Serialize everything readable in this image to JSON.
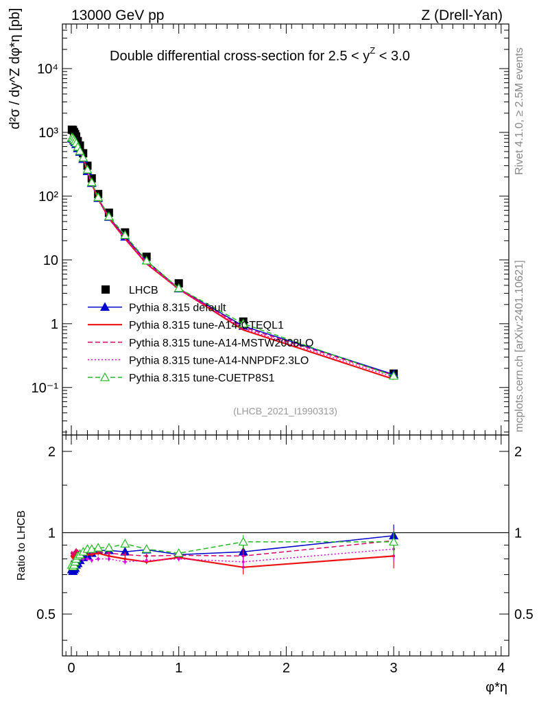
{
  "header": {
    "energy_label": "13000 GeV pp",
    "process_label": "Z (Drell-Yan)",
    "side_rivet": "Rivet 4.1.0, ≥ 2.5M events",
    "side_mcplots": "mcplots.cern.ch [arXiv:2401.10621]",
    "analysis_id": "(LHCB_2021_I1990313)"
  },
  "chart_data": {
    "type": "line",
    "title": "Double differential cross-section for 2.5 < y^Z < 3.0",
    "title_text": "Double differential cross-section for 2.5 < y",
    "title_sup": "Z",
    "title_tail": " < 3.0",
    "xlabel": "φ*η",
    "ylabel": "d²σ / dy^Z dφ*η [pb]",
    "ylabel_ratio": "Ratio to LHCB",
    "xlim": [
      -0.08,
      4.05
    ],
    "ylim": [
      0.018,
      50000
    ],
    "ylim_ratio": [
      0.35,
      2.3
    ],
    "x_ticks": [
      "0",
      "1",
      "2",
      "3",
      "4"
    ],
    "y_ticks": [
      "10⁻¹",
      "1",
      "10",
      "10²",
      "10³",
      "10⁴"
    ],
    "ratio_ticks": [
      "0.5",
      "1",
      "2"
    ],
    "x": [
      0.005,
      0.015,
      0.025,
      0.035,
      0.045,
      0.06,
      0.08,
      0.11,
      0.15,
      0.19,
      0.25,
      0.35,
      0.5,
      0.7,
      1.0,
      1.6,
      3.0
    ],
    "series": [
      {
        "name": "LHCB",
        "key": "lhcb",
        "color": "#000000",
        "style": "data",
        "values": [
          1100,
          1090,
          1010,
          940,
          860,
          730,
          620,
          470,
          300,
          190,
          108,
          55,
          27,
          11.2,
          4.3,
          1.08,
          0.165
        ]
      },
      {
        "name": "Pythia 8.315 default",
        "key": "default",
        "color": "#0000cc",
        "style": "solid-tri",
        "values": [
          800,
          785,
          740,
          700,
          650,
          560,
          490,
          380,
          245,
          160,
          93,
          47,
          23,
          9.7,
          3.55,
          0.92,
          0.16
        ],
        "ratio": [
          0.73,
          0.72,
          0.73,
          0.74,
          0.76,
          0.77,
          0.79,
          0.81,
          0.82,
          0.84,
          0.86,
          0.86,
          0.85,
          0.865,
          0.83,
          0.85,
          0.975
        ]
      },
      {
        "name": "Pythia 8.315 tune-A14-CTEQL1",
        "key": "cteql1",
        "color": "#ee1111",
        "style": "solid",
        "values": [
          900,
          880,
          830,
          780,
          720,
          600,
          510,
          390,
          250,
          158,
          91,
          45,
          21.5,
          8.7,
          3.5,
          0.8,
          0.135
        ],
        "ratio": [
          0.82,
          0.81,
          0.82,
          0.83,
          0.84,
          0.82,
          0.82,
          0.83,
          0.83,
          0.83,
          0.84,
          0.82,
          0.8,
          0.78,
          0.81,
          0.745,
          0.82
        ]
      },
      {
        "name": "Pythia 8.315 tune-A14-MSTW2008LO",
        "key": "mstw",
        "color": "#dd0066",
        "style": "dashed",
        "values": [
          920,
          900,
          850,
          800,
          740,
          620,
          530,
          400,
          255,
          160,
          92,
          46,
          22.5,
          9.2,
          3.55,
          0.88,
          0.155
        ],
        "ratio": [
          0.84,
          0.83,
          0.84,
          0.85,
          0.86,
          0.85,
          0.85,
          0.85,
          0.85,
          0.84,
          0.85,
          0.84,
          0.83,
          0.82,
          0.825,
          0.82,
          0.935
        ]
      },
      {
        "name": "Pythia 8.315 tune-A14-NNPDF2.3LO",
        "key": "nnpdf",
        "color": "#dd00dd",
        "style": "dotted",
        "values": [
          860,
          840,
          790,
          750,
          690,
          580,
          500,
          380,
          240,
          152,
          87,
          44,
          21,
          8.8,
          3.45,
          0.84,
          0.145
        ],
        "ratio": [
          0.78,
          0.77,
          0.78,
          0.8,
          0.8,
          0.8,
          0.8,
          0.8,
          0.8,
          0.79,
          0.8,
          0.8,
          0.78,
          0.79,
          0.8,
          0.78,
          0.87
        ]
      },
      {
        "name": "Pythia 8.315 tune-CUETP8S1",
        "key": "cuetp8s1",
        "color": "#22bb22",
        "style": "dashed-open-tri",
        "values": [
          830,
          810,
          770,
          730,
          680,
          590,
          510,
          400,
          260,
          165,
          96,
          48,
          24.5,
          9.7,
          3.6,
          1.0,
          0.152
        ],
        "ratio": [
          0.76,
          0.75,
          0.76,
          0.78,
          0.8,
          0.82,
          0.83,
          0.85,
          0.87,
          0.87,
          0.88,
          0.88,
          0.91,
          0.87,
          0.84,
          0.925,
          0.925
        ]
      }
    ]
  }
}
